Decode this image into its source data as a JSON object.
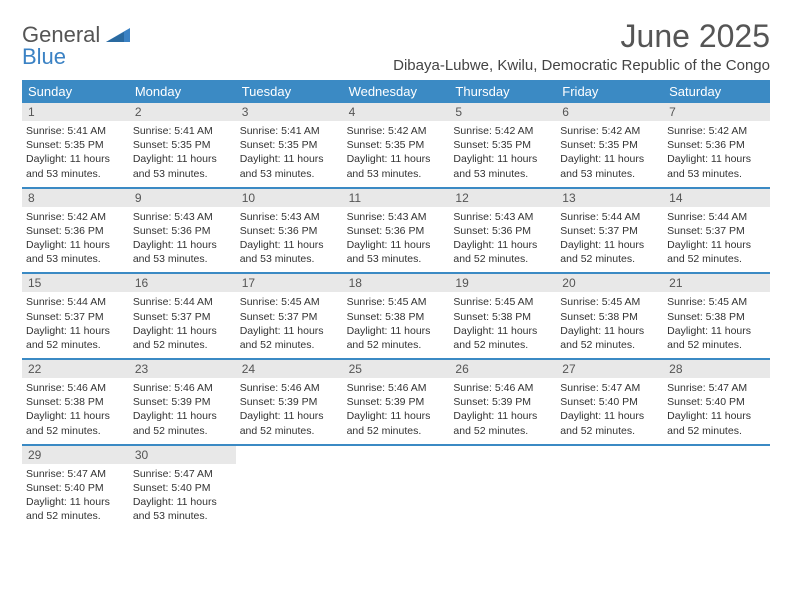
{
  "brand": {
    "name_part1": "General",
    "name_part2": "Blue"
  },
  "title": "June 2025",
  "location": "Dibaya-Lubwe, Kwilu, Democratic Republic of the Congo",
  "colors": {
    "header_bg": "#3b8ac4",
    "header_text": "#ffffff",
    "daynum_bg": "#e8e8e8",
    "daynum_text": "#555555",
    "border": "#3b8ac4",
    "brand_gray": "#555555",
    "brand_blue": "#3b82c4"
  },
  "weekdays": [
    "Sunday",
    "Monday",
    "Tuesday",
    "Wednesday",
    "Thursday",
    "Friday",
    "Saturday"
  ],
  "weeks": [
    [
      {
        "n": "1",
        "sr": "Sunrise: 5:41 AM",
        "ss": "Sunset: 5:35 PM",
        "d1": "Daylight: 11 hours",
        "d2": "and 53 minutes."
      },
      {
        "n": "2",
        "sr": "Sunrise: 5:41 AM",
        "ss": "Sunset: 5:35 PM",
        "d1": "Daylight: 11 hours",
        "d2": "and 53 minutes."
      },
      {
        "n": "3",
        "sr": "Sunrise: 5:41 AM",
        "ss": "Sunset: 5:35 PM",
        "d1": "Daylight: 11 hours",
        "d2": "and 53 minutes."
      },
      {
        "n": "4",
        "sr": "Sunrise: 5:42 AM",
        "ss": "Sunset: 5:35 PM",
        "d1": "Daylight: 11 hours",
        "d2": "and 53 minutes."
      },
      {
        "n": "5",
        "sr": "Sunrise: 5:42 AM",
        "ss": "Sunset: 5:35 PM",
        "d1": "Daylight: 11 hours",
        "d2": "and 53 minutes."
      },
      {
        "n": "6",
        "sr": "Sunrise: 5:42 AM",
        "ss": "Sunset: 5:35 PM",
        "d1": "Daylight: 11 hours",
        "d2": "and 53 minutes."
      },
      {
        "n": "7",
        "sr": "Sunrise: 5:42 AM",
        "ss": "Sunset: 5:36 PM",
        "d1": "Daylight: 11 hours",
        "d2": "and 53 minutes."
      }
    ],
    [
      {
        "n": "8",
        "sr": "Sunrise: 5:42 AM",
        "ss": "Sunset: 5:36 PM",
        "d1": "Daylight: 11 hours",
        "d2": "and 53 minutes."
      },
      {
        "n": "9",
        "sr": "Sunrise: 5:43 AM",
        "ss": "Sunset: 5:36 PM",
        "d1": "Daylight: 11 hours",
        "d2": "and 53 minutes."
      },
      {
        "n": "10",
        "sr": "Sunrise: 5:43 AM",
        "ss": "Sunset: 5:36 PM",
        "d1": "Daylight: 11 hours",
        "d2": "and 53 minutes."
      },
      {
        "n": "11",
        "sr": "Sunrise: 5:43 AM",
        "ss": "Sunset: 5:36 PM",
        "d1": "Daylight: 11 hours",
        "d2": "and 53 minutes."
      },
      {
        "n": "12",
        "sr": "Sunrise: 5:43 AM",
        "ss": "Sunset: 5:36 PM",
        "d1": "Daylight: 11 hours",
        "d2": "and 52 minutes."
      },
      {
        "n": "13",
        "sr": "Sunrise: 5:44 AM",
        "ss": "Sunset: 5:37 PM",
        "d1": "Daylight: 11 hours",
        "d2": "and 52 minutes."
      },
      {
        "n": "14",
        "sr": "Sunrise: 5:44 AM",
        "ss": "Sunset: 5:37 PM",
        "d1": "Daylight: 11 hours",
        "d2": "and 52 minutes."
      }
    ],
    [
      {
        "n": "15",
        "sr": "Sunrise: 5:44 AM",
        "ss": "Sunset: 5:37 PM",
        "d1": "Daylight: 11 hours",
        "d2": "and 52 minutes."
      },
      {
        "n": "16",
        "sr": "Sunrise: 5:44 AM",
        "ss": "Sunset: 5:37 PM",
        "d1": "Daylight: 11 hours",
        "d2": "and 52 minutes."
      },
      {
        "n": "17",
        "sr": "Sunrise: 5:45 AM",
        "ss": "Sunset: 5:37 PM",
        "d1": "Daylight: 11 hours",
        "d2": "and 52 minutes."
      },
      {
        "n": "18",
        "sr": "Sunrise: 5:45 AM",
        "ss": "Sunset: 5:38 PM",
        "d1": "Daylight: 11 hours",
        "d2": "and 52 minutes."
      },
      {
        "n": "19",
        "sr": "Sunrise: 5:45 AM",
        "ss": "Sunset: 5:38 PM",
        "d1": "Daylight: 11 hours",
        "d2": "and 52 minutes."
      },
      {
        "n": "20",
        "sr": "Sunrise: 5:45 AM",
        "ss": "Sunset: 5:38 PM",
        "d1": "Daylight: 11 hours",
        "d2": "and 52 minutes."
      },
      {
        "n": "21",
        "sr": "Sunrise: 5:45 AM",
        "ss": "Sunset: 5:38 PM",
        "d1": "Daylight: 11 hours",
        "d2": "and 52 minutes."
      }
    ],
    [
      {
        "n": "22",
        "sr": "Sunrise: 5:46 AM",
        "ss": "Sunset: 5:38 PM",
        "d1": "Daylight: 11 hours",
        "d2": "and 52 minutes."
      },
      {
        "n": "23",
        "sr": "Sunrise: 5:46 AM",
        "ss": "Sunset: 5:39 PM",
        "d1": "Daylight: 11 hours",
        "d2": "and 52 minutes."
      },
      {
        "n": "24",
        "sr": "Sunrise: 5:46 AM",
        "ss": "Sunset: 5:39 PM",
        "d1": "Daylight: 11 hours",
        "d2": "and 52 minutes."
      },
      {
        "n": "25",
        "sr": "Sunrise: 5:46 AM",
        "ss": "Sunset: 5:39 PM",
        "d1": "Daylight: 11 hours",
        "d2": "and 52 minutes."
      },
      {
        "n": "26",
        "sr": "Sunrise: 5:46 AM",
        "ss": "Sunset: 5:39 PM",
        "d1": "Daylight: 11 hours",
        "d2": "and 52 minutes."
      },
      {
        "n": "27",
        "sr": "Sunrise: 5:47 AM",
        "ss": "Sunset: 5:40 PM",
        "d1": "Daylight: 11 hours",
        "d2": "and 52 minutes."
      },
      {
        "n": "28",
        "sr": "Sunrise: 5:47 AM",
        "ss": "Sunset: 5:40 PM",
        "d1": "Daylight: 11 hours",
        "d2": "and 52 minutes."
      }
    ],
    [
      {
        "n": "29",
        "sr": "Sunrise: 5:47 AM",
        "ss": "Sunset: 5:40 PM",
        "d1": "Daylight: 11 hours",
        "d2": "and 52 minutes."
      },
      {
        "n": "30",
        "sr": "Sunrise: 5:47 AM",
        "ss": "Sunset: 5:40 PM",
        "d1": "Daylight: 11 hours",
        "d2": "and 53 minutes."
      },
      null,
      null,
      null,
      null,
      null
    ]
  ]
}
